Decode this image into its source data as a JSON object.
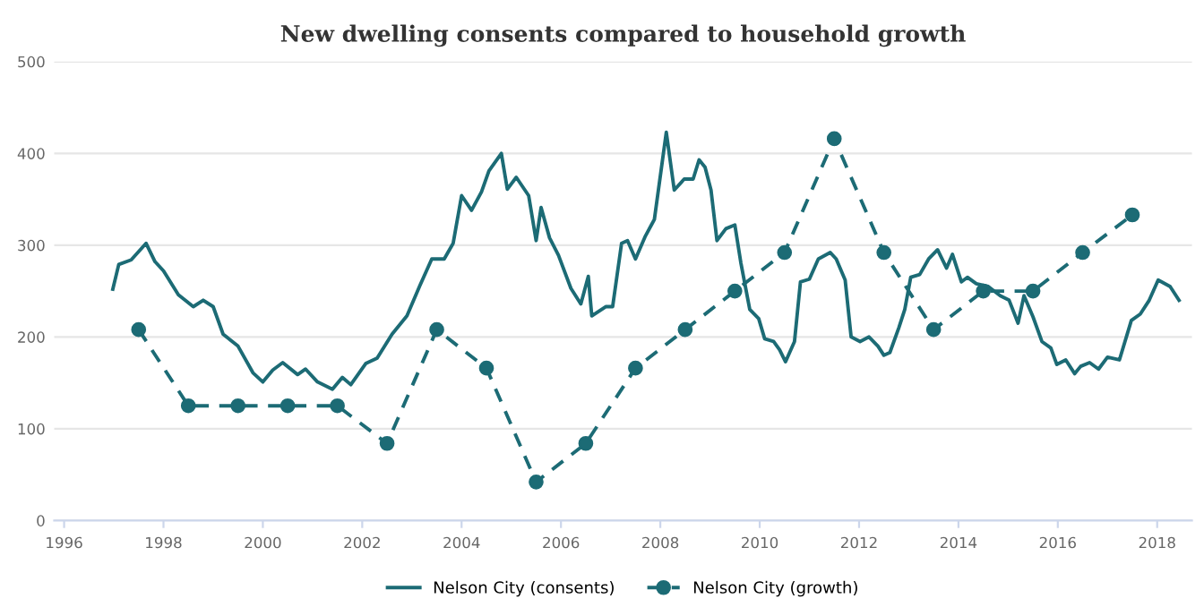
{
  "chart_data": {
    "type": "line",
    "title": "New dwelling consents compared to household growth",
    "xlim": [
      1995.8,
      2018.7
    ],
    "xticks": [
      1996,
      1998,
      2000,
      2002,
      2004,
      2006,
      2008,
      2010,
      2012,
      2014,
      2016,
      2018
    ],
    "ylim": [
      0,
      500
    ],
    "yticks": [
      0,
      100,
      200,
      300,
      400,
      500
    ],
    "grid": "y",
    "legend": "bottom",
    "series": [
      {
        "name": "Nelson City (consents)",
        "color": "#1c6b75",
        "line_style": "solid",
        "marker": "none",
        "x": [
          1996.98,
          1997.1,
          1997.35,
          1997.65,
          1997.83,
          1998.0,
          1998.3,
          1998.6,
          1998.8,
          1999.0,
          1999.2,
          1999.5,
          1999.8,
          2000.0,
          2000.2,
          2000.4,
          2000.7,
          2000.86,
          2001.1,
          2001.4,
          2001.6,
          2001.77,
          2002.07,
          2002.3,
          2002.6,
          2002.9,
          2003.16,
          2003.4,
          2003.65,
          2003.83,
          2004.0,
          2004.2,
          2004.4,
          2004.55,
          2004.8,
          2004.92,
          2005.1,
          2005.35,
          2005.5,
          2005.6,
          2005.77,
          2005.95,
          2006.2,
          2006.4,
          2006.55,
          2006.62,
          2006.9,
          2007.04,
          2007.22,
          2007.34,
          2007.5,
          2007.7,
          2007.82,
          2007.88,
          2008.12,
          2008.28,
          2008.48,
          2008.66,
          2008.78,
          2008.9,
          2009.02,
          2009.14,
          2009.32,
          2009.5,
          2009.62,
          2009.8,
          2009.98,
          2010.1,
          2010.28,
          2010.4,
          2010.52,
          2010.7,
          2010.82,
          2011.0,
          2011.18,
          2011.42,
          2011.54,
          2011.72,
          2011.84,
          2012.02,
          2012.2,
          2012.38,
          2012.5,
          2012.62,
          2012.8,
          2012.92,
          2013.04,
          2013.22,
          2013.4,
          2013.58,
          2013.76,
          2013.88,
          2014.06,
          2014.18,
          2014.36,
          2014.6,
          2014.84,
          2015.02,
          2015.2,
          2015.32,
          2015.5,
          2015.68,
          2015.86,
          2015.98,
          2016.16,
          2016.34,
          2016.46,
          2016.64,
          2016.82,
          2017.0,
          2017.24,
          2017.48,
          2017.66,
          2017.84,
          2018.02,
          2018.26,
          2018.44
        ],
        "values": [
          252,
          279,
          284,
          302,
          282,
          272,
          246,
          233,
          240,
          233,
          203,
          190,
          161,
          151,
          164,
          172,
          159,
          165,
          151,
          143,
          156,
          148,
          171,
          177,
          203,
          223,
          256,
          285,
          285,
          302,
          354,
          338,
          358,
          381,
          400,
          361,
          374,
          354,
          305,
          341,
          308,
          289,
          253,
          236,
          266,
          223,
          233,
          233,
          302,
          305,
          285,
          310,
          322,
          328,
          423,
          360,
          372,
          372,
          393,
          385,
          360,
          305,
          318,
          322,
          281,
          230,
          220,
          198,
          195,
          186,
          173,
          195,
          260,
          263,
          285,
          292,
          285,
          262,
          200,
          195,
          200,
          190,
          180,
          183,
          210,
          230,
          265,
          268,
          285,
          295,
          275,
          290,
          260,
          265,
          258,
          255,
          245,
          240,
          215,
          245,
          222,
          195,
          188,
          170,
          175,
          160,
          168,
          172,
          165,
          178,
          175,
          218,
          225,
          240,
          262,
          255,
          240
        ]
      },
      {
        "name": "Nelson City (growth)",
        "color": "#1c6b75",
        "line_style": "dashed",
        "marker": "circle",
        "x": [
          1997.5,
          1998.5,
          1999.5,
          2000.5,
          2001.5,
          2002.5,
          2003.5,
          2004.5,
          2005.5,
          2006.5,
          2007.5,
          2008.5,
          2009.5,
          2010.5,
          2011.5,
          2012.5,
          2013.5,
          2014.5,
          2015.5,
          2016.5,
          2017.5
        ],
        "values": [
          208,
          125,
          125,
          125,
          125,
          84,
          208,
          166,
          42,
          84,
          166,
          208,
          250,
          292,
          416,
          292,
          208,
          250,
          250,
          292,
          333
        ]
      }
    ]
  }
}
